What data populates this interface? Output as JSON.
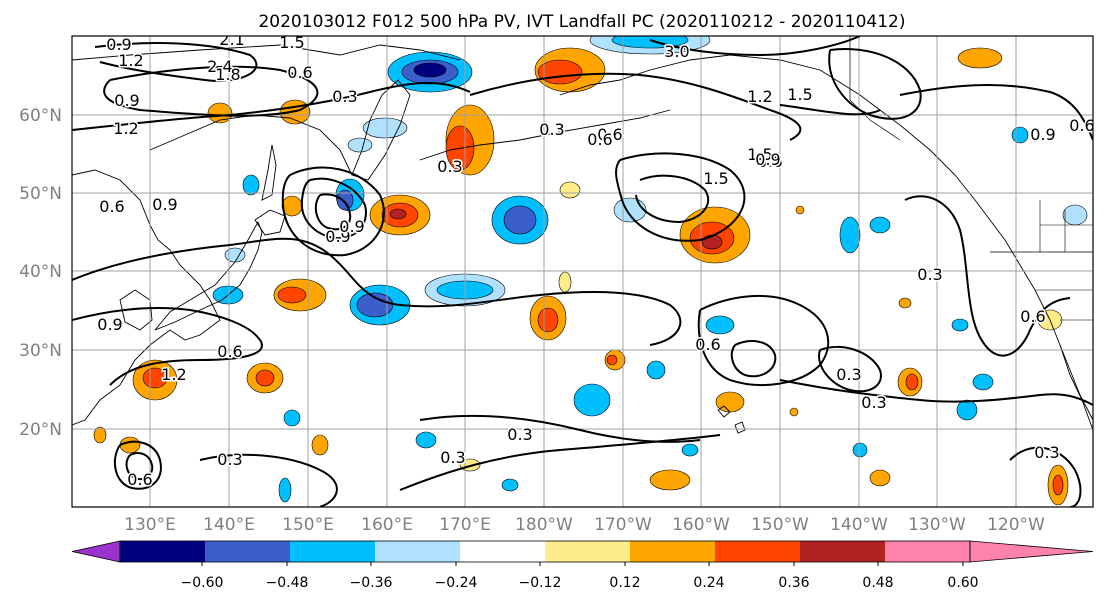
{
  "title": "2020103012 F012 500 hPa PV, IVT Landfall PC (2020110212 - 2020110412)",
  "lat_labels": [
    "60°N",
    "50°N",
    "40°N",
    "30°N",
    "20°N"
  ],
  "lon_labels": [
    "130°E",
    "140°E",
    "150°E",
    "160°E",
    "170°E",
    "180°W",
    "170°W",
    "160°W",
    "150°W",
    "140°W",
    "130°W",
    "120°W"
  ],
  "colorbar": {
    "tick_labels": [
      "−0.60",
      "−0.48",
      "−0.36",
      "−0.24",
      "−0.12",
      "0.12",
      "0.24",
      "0.36",
      "0.48",
      "0.60"
    ],
    "colors": [
      "#9a32cd",
      "#000080",
      "#3a5fcd",
      "#00bfff",
      "#b0e2ff",
      "#ffffff",
      "#ffec8b",
      "#ffa500",
      "#ff4500",
      "#b22222",
      "#ff82ab"
    ]
  },
  "pv_contour_labels": [
    "0.9",
    "1.2",
    "2.1",
    "2.4",
    "1.8",
    "1.5",
    "0.6",
    "0.3",
    "3.0",
    "1.2",
    "1.5",
    "0.9",
    "1.2",
    "0.6",
    "0.3",
    "0.6",
    "0.9",
    "1.5",
    "0.3",
    "0.9",
    "1.5",
    "0.9",
    "0.6",
    "1.2",
    "0.6",
    "0.9",
    "0.3",
    "0.9",
    "0.6",
    "0.6",
    "0.9",
    "0.6",
    "0.3",
    "0.3",
    "0.3",
    "0.6",
    "0.3",
    "0.6",
    "0.3",
    "0.3"
  ]
}
